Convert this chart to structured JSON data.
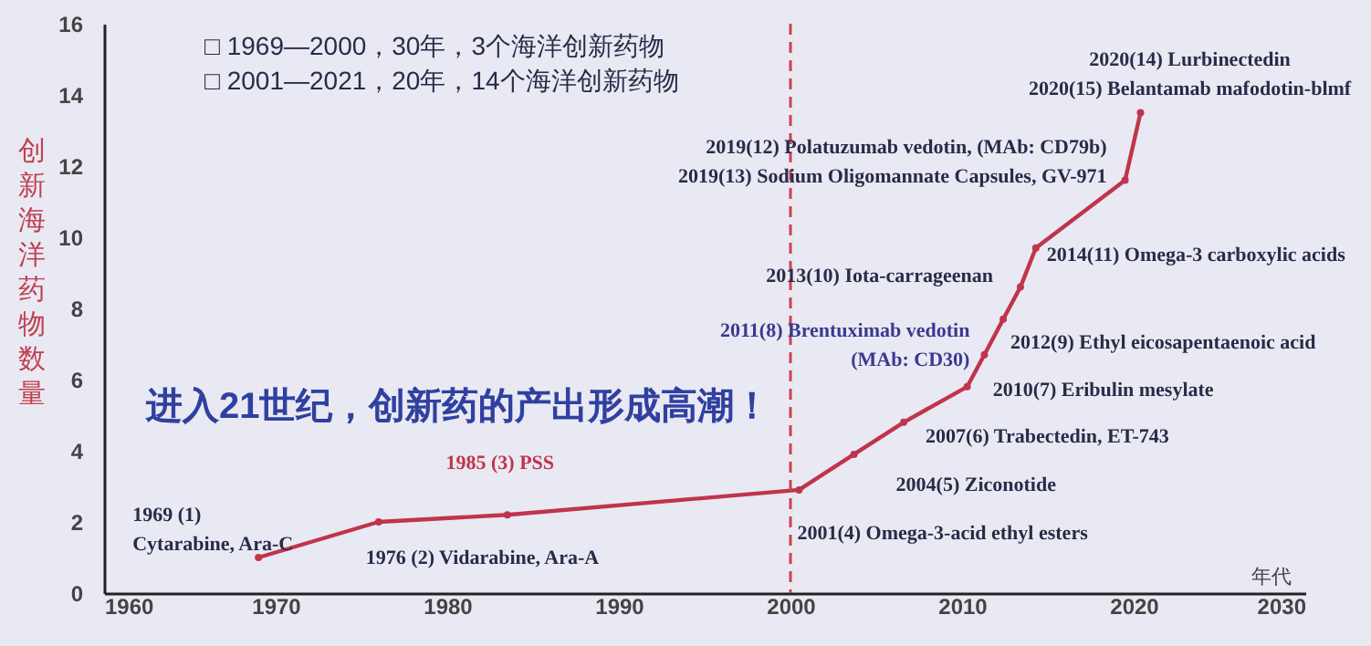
{
  "chart_data": {
    "type": "line",
    "ylabel": "创新海洋药物数量",
    "xlabel": "年代",
    "xlim": [
      1960,
      2030
    ],
    "ylim": [
      0,
      16
    ],
    "xticks": [
      1960,
      1970,
      1980,
      1990,
      2000,
      2010,
      2020,
      2030
    ],
    "yticks": [
      0,
      2,
      4,
      6,
      8,
      10,
      12,
      14,
      16
    ],
    "grid": false,
    "marker": "circle",
    "line_style": "solid",
    "series": [
      {
        "color": "#c0344c",
        "x": [
          1969,
          1976,
          1983.5,
          2000.5,
          2003.7,
          2006.6,
          2010.3,
          2011.3,
          2012.4,
          2013.4,
          2014.3,
          2019.5,
          2020.4
        ],
        "values": [
          1,
          2,
          2.2,
          2.9,
          3.9,
          4.8,
          5.8,
          6.7,
          7.7,
          8.6,
          9.7,
          11.6,
          13.5
        ]
      }
    ],
    "ref_lines": [
      {
        "axis": "x",
        "value": 2000,
        "color": "#d04050",
        "line_style": "dashed"
      }
    ],
    "annotations": [
      {
        "text": "1969 (1)\nCytarabine, Ara-C",
        "x": 1969,
        "y": 1
      },
      {
        "text": "1976 (2) Vidarabine, Ara-A",
        "x": 1976,
        "y": 2
      },
      {
        "text": "1985 (3) PSS",
        "x": 1983.5,
        "y": 2.2
      },
      {
        "text": "2001(4)  Omega-3-acid ethyl esters",
        "x": 2000.5,
        "y": 2.9
      },
      {
        "text": "2004(5) Ziconotide",
        "x": 2003.7,
        "y": 3.9
      },
      {
        "text": "2007(6) Trabectedin, ET-743",
        "x": 2006.6,
        "y": 4.8
      },
      {
        "text": "2010(7) Eribulin mesylate",
        "x": 2010.3,
        "y": 5.8
      },
      {
        "text": "2011(8) Brentuximab vedotin\n(MAb: CD30)",
        "x": 2011.3,
        "y": 6.7
      },
      {
        "text": "2012(9) Ethyl eicosapentaenoic acid",
        "x": 2012.4,
        "y": 7.7
      },
      {
        "text": "2013(10) Iota-carrageenan",
        "x": 2013.4,
        "y": 8.6
      },
      {
        "text": "2014(11) Omega-3 carboxylic acids",
        "x": 2014.3,
        "y": 9.7
      },
      {
        "text": "2019(12) Polatuzumab vedotin, (MAb: CD79b)\n2019(13) Sodium Oligomannate Capsules, GV-971",
        "x": 2019.5,
        "y": 11.6
      },
      {
        "text": "2020(14) Lurbinectedin\n2020(15) Belantamab mafodotin-blmf",
        "x": 2020.4,
        "y": 13.5
      },
      "□ 1969—2000，30年，3个海洋创新药物",
      "□ 2001—2021，20年，14个海洋创新药物",
      "进入21世纪，创新药的产出形成高潮！"
    ]
  }
}
